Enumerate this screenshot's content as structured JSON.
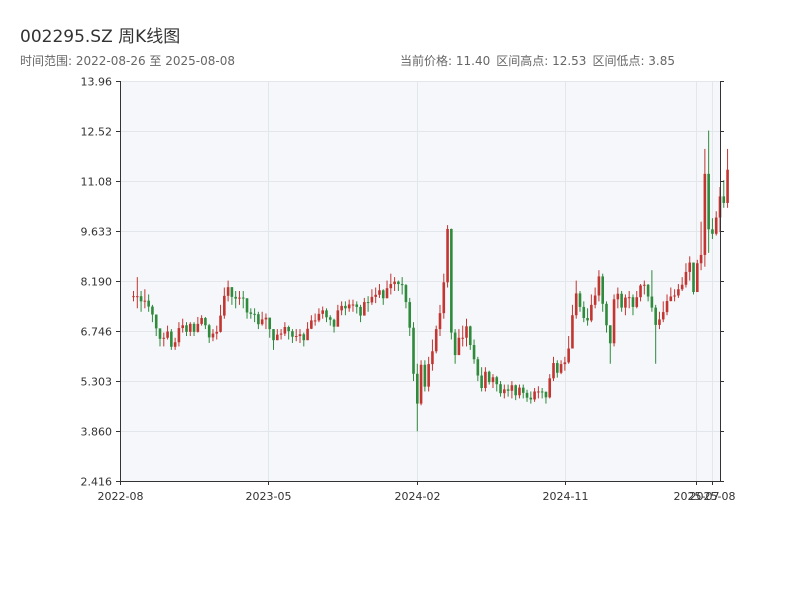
{
  "header": {
    "title": "002295.SZ 周K线图",
    "range_text": "时间范围: 2022-08-26 至 2025-08-08",
    "current_text": "当前价格: 11.40",
    "high_text": "区间高点: 12.53",
    "low_text": "区间低点: 3.85"
  },
  "colors": {
    "up": "#c23531",
    "down": "#2f8a3c",
    "plot_bg": "#f5f7fa",
    "grid": "#e3e6ea",
    "axis": "#333333"
  },
  "chart_data": {
    "type": "candlestick",
    "title": "002295.SZ 周K线图",
    "xlabel": "",
    "ylabel": "",
    "ylim": [
      2.416,
      13.96
    ],
    "y_ticks": [
      "2.416",
      "3.860",
      "5.303",
      "6.746",
      "8.190",
      "9.633",
      "11.08",
      "12.52",
      "13.96"
    ],
    "xlim": [
      "2022-08-01",
      "2025-08-15"
    ],
    "x_ticks": [
      {
        "label": "2022-08",
        "date": "2022-08-01"
      },
      {
        "label": "2023-05",
        "date": "2023-05-01"
      },
      {
        "label": "2024-02",
        "date": "2024-02-01"
      },
      {
        "label": "2024-11",
        "date": "2024-11-01"
      },
      {
        "label": "2025-07",
        "date": "2025-07-01"
      },
      {
        "label": "2025-08",
        "date": "2025-08-01"
      }
    ],
    "grid": true,
    "start_date": "2022-08-26",
    "end_date": "2025-08-08",
    "closes": [
      7.75,
      7.75,
      7.6,
      7.62,
      7.45,
      7.22,
      6.82,
      6.52,
      6.55,
      6.73,
      6.29,
      6.42,
      6.83,
      6.91,
      6.72,
      6.95,
      6.72,
      6.95,
      7.12,
      6.91,
      6.56,
      6.67,
      6.72,
      7.19,
      7.76,
      8.01,
      7.73,
      7.68,
      7.71,
      7.69,
      7.28,
      7.24,
      7.23,
      6.94,
      7.08,
      7.13,
      6.8,
      6.48,
      6.64,
      6.67,
      6.86,
      6.74,
      6.58,
      6.6,
      6.65,
      6.48,
      6.81,
      7.05,
      7.05,
      7.24,
      7.34,
      7.14,
      7.07,
      6.87,
      7.34,
      7.47,
      7.4,
      7.51,
      7.51,
      7.44,
      7.19,
      7.58,
      7.57,
      7.73,
      7.79,
      7.92,
      7.69,
      7.98,
      8.1,
      8.17,
      8.1,
      8.07,
      7.58,
      6.84,
      5.51,
      4.65,
      5.77,
      5.14,
      5.79,
      6.16,
      6.8,
      7.26,
      8.15,
      9.69,
      6.7,
      6.05,
      6.55,
      6.55,
      6.88,
      6.34,
      5.93,
      5.46,
      5.1,
      5.57,
      5.27,
      5.41,
      5.21,
      4.95,
      5.06,
      5.02,
      5.18,
      4.89,
      5.11,
      4.96,
      4.82,
      4.77,
      5.0,
      5.0,
      4.99,
      4.83,
      5.38,
      5.82,
      5.54,
      5.79,
      5.84,
      6.24,
      7.2,
      7.83,
      7.44,
      7.12,
      7.05,
      7.5,
      7.77,
      8.32,
      7.53,
      6.91,
      6.39,
      7.66,
      7.82,
      7.42,
      7.71,
      7.72,
      7.44,
      7.72,
      8.06,
      8.08,
      7.74,
      7.42,
      6.92,
      7.08,
      7.29,
      7.61,
      7.74,
      7.77,
      7.95,
      8.08,
      8.45,
      8.72,
      7.87,
      8.7,
      8.94,
      11.28,
      9.68,
      9.55,
      10.02,
      10.63,
      10.44,
      11.4
    ],
    "ranges": [
      [
        7.6,
        7.9
      ],
      [
        7.4,
        8.3
      ],
      [
        7.3,
        7.9
      ],
      [
        7.4,
        7.95
      ],
      [
        7.3,
        7.8
      ],
      [
        7.0,
        7.5
      ],
      [
        6.6,
        7.1
      ],
      [
        6.3,
        6.8
      ],
      [
        6.3,
        6.7
      ],
      [
        6.5,
        6.9
      ],
      [
        6.2,
        6.8
      ],
      [
        6.2,
        6.55
      ],
      [
        6.3,
        7.0
      ],
      [
        6.7,
        7.1
      ],
      [
        6.6,
        7.0
      ],
      [
        6.6,
        7.0
      ],
      [
        6.6,
        7.0
      ],
      [
        6.7,
        7.15
      ],
      [
        6.9,
        7.2
      ],
      [
        6.8,
        7.15
      ],
      [
        6.4,
        6.95
      ],
      [
        6.45,
        6.8
      ],
      [
        6.5,
        6.9
      ],
      [
        6.7,
        7.5
      ],
      [
        7.1,
        8.0
      ],
      [
        7.6,
        8.2
      ],
      [
        7.5,
        8.0
      ],
      [
        7.4,
        7.9
      ],
      [
        7.5,
        7.9
      ],
      [
        7.4,
        7.9
      ],
      [
        7.1,
        7.5
      ],
      [
        7.1,
        7.4
      ],
      [
        7.0,
        7.4
      ],
      [
        6.8,
        7.3
      ],
      [
        6.9,
        7.3
      ],
      [
        6.8,
        7.25
      ],
      [
        6.55,
        7.0
      ],
      [
        6.2,
        6.8
      ],
      [
        6.5,
        6.8
      ],
      [
        6.5,
        6.8
      ],
      [
        6.6,
        7.0
      ],
      [
        6.5,
        6.9
      ],
      [
        6.4,
        6.8
      ],
      [
        6.45,
        6.8
      ],
      [
        6.4,
        6.8
      ],
      [
        6.3,
        6.7
      ],
      [
        6.5,
        7.0
      ],
      [
        6.8,
        7.2
      ],
      [
        6.9,
        7.25
      ],
      [
        7.0,
        7.4
      ],
      [
        7.1,
        7.45
      ],
      [
        7.0,
        7.4
      ],
      [
        6.9,
        7.2
      ],
      [
        6.7,
        7.1
      ],
      [
        6.9,
        7.5
      ],
      [
        7.2,
        7.6
      ],
      [
        7.2,
        7.6
      ],
      [
        7.3,
        7.65
      ],
      [
        7.3,
        7.65
      ],
      [
        7.25,
        7.6
      ],
      [
        7.0,
        7.5
      ],
      [
        7.2,
        7.7
      ],
      [
        7.3,
        7.75
      ],
      [
        7.5,
        7.95
      ],
      [
        7.55,
        8.0
      ],
      [
        7.7,
        8.1
      ],
      [
        7.5,
        7.95
      ],
      [
        7.7,
        8.2
      ],
      [
        7.8,
        8.4
      ],
      [
        7.9,
        8.3
      ],
      [
        7.9,
        8.2
      ],
      [
        7.8,
        8.3
      ],
      [
        7.4,
        8.1
      ],
      [
        6.6,
        7.7
      ],
      [
        5.3,
        7.0
      ],
      [
        3.85,
        5.8
      ],
      [
        4.6,
        5.9
      ],
      [
        5.0,
        5.9
      ],
      [
        5.0,
        6.0
      ],
      [
        5.6,
        6.5
      ],
      [
        6.1,
        6.9
      ],
      [
        6.6,
        7.5
      ],
      [
        7.1,
        8.4
      ],
      [
        8.0,
        9.8
      ],
      [
        6.5,
        9.7
      ],
      [
        5.8,
        6.8
      ],
      [
        6.1,
        6.8
      ],
      [
        6.3,
        6.9
      ],
      [
        6.3,
        7.1
      ],
      [
        6.2,
        6.9
      ],
      [
        5.8,
        6.5
      ],
      [
        5.3,
        6.0
      ],
      [
        5.0,
        5.7
      ],
      [
        5.0,
        5.7
      ],
      [
        5.2,
        5.6
      ],
      [
        5.1,
        5.5
      ],
      [
        5.0,
        5.45
      ],
      [
        4.85,
        5.3
      ],
      [
        4.8,
        5.2
      ],
      [
        4.85,
        5.2
      ],
      [
        4.8,
        5.3
      ],
      [
        4.75,
        5.2
      ],
      [
        4.8,
        5.2
      ],
      [
        4.8,
        5.2
      ],
      [
        4.7,
        5.05
      ],
      [
        4.65,
        5.0
      ],
      [
        4.7,
        5.1
      ],
      [
        4.8,
        5.15
      ],
      [
        4.8,
        5.1
      ],
      [
        4.65,
        5.0
      ],
      [
        4.8,
        5.5
      ],
      [
        5.3,
        6.0
      ],
      [
        5.4,
        5.9
      ],
      [
        5.5,
        5.9
      ],
      [
        5.6,
        6.0
      ],
      [
        5.8,
        6.6
      ],
      [
        6.3,
        7.5
      ],
      [
        7.1,
        8.2
      ],
      [
        7.3,
        7.9
      ],
      [
        7.0,
        7.6
      ],
      [
        6.9,
        7.4
      ],
      [
        7.0,
        7.8
      ],
      [
        7.4,
        8.0
      ],
      [
        7.6,
        8.5
      ],
      [
        7.3,
        8.4
      ],
      [
        6.7,
        7.6
      ],
      [
        5.8,
        6.8
      ],
      [
        6.3,
        7.8
      ],
      [
        7.4,
        8.0
      ],
      [
        7.3,
        7.9
      ],
      [
        7.2,
        7.8
      ],
      [
        7.4,
        7.9
      ],
      [
        7.2,
        7.8
      ],
      [
        7.4,
        7.9
      ],
      [
        7.6,
        8.1
      ],
      [
        7.8,
        8.2
      ],
      [
        7.6,
        8.1
      ],
      [
        7.3,
        8.5
      ],
      [
        5.8,
        7.5
      ],
      [
        6.8,
        7.3
      ],
      [
        7.0,
        7.6
      ],
      [
        7.2,
        7.8
      ],
      [
        7.6,
        8.0
      ],
      [
        7.6,
        7.95
      ],
      [
        7.7,
        8.1
      ],
      [
        7.9,
        8.3
      ],
      [
        8.0,
        8.7
      ],
      [
        8.2,
        8.9
      ],
      [
        7.8,
        8.6
      ],
      [
        7.9,
        8.8
      ],
      [
        8.5,
        9.9
      ],
      [
        8.6,
        12.0
      ],
      [
        9.0,
        12.53
      ],
      [
        9.4,
        10.0
      ],
      [
        9.5,
        10.2
      ],
      [
        9.6,
        10.9
      ],
      [
        10.3,
        11.1
      ],
      [
        10.3,
        12.0
      ]
    ]
  }
}
